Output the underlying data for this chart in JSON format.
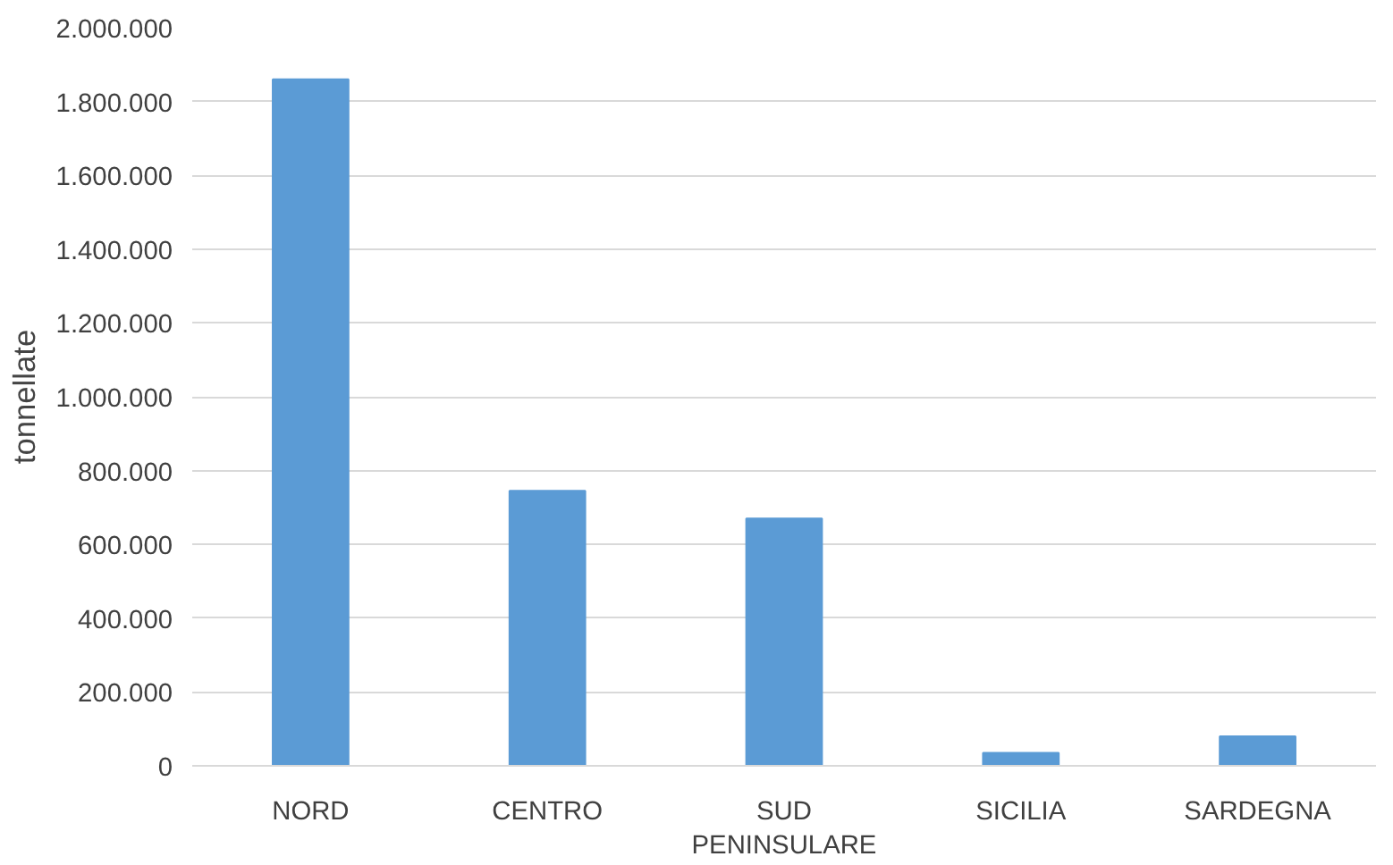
{
  "chart_data": {
    "type": "bar",
    "ylabel": "tonnellate",
    "categories": [
      "NORD",
      "CENTRO",
      "SUD PENINSULARE",
      "SICILIA",
      "SARDEGNA"
    ],
    "values": [
      1860000,
      745000,
      670000,
      35000,
      80000
    ],
    "color": "#5b9bd5",
    "ylim": [
      0,
      2000000
    ],
    "yticks": [
      0,
      {
        "value": 200000,
        "label": "200.000"
      },
      {
        "value": 400000,
        "label": "400.000"
      },
      {
        "value": 600000,
        "label": "600.000"
      },
      {
        "value": 800000,
        "label": "800.000"
      },
      {
        "value": 1000000,
        "label": "1.000.000"
      },
      {
        "value": 1200000,
        "label": "1.200.000"
      },
      {
        "value": 1400000,
        "label": "1.400.000"
      },
      {
        "value": 1600000,
        "label": "1.600.000"
      },
      {
        "value": 1800000,
        "label": "1.800.000"
      },
      {
        "value": 2000000,
        "label": "2.000.000"
      }
    ],
    "grid": "y"
  }
}
